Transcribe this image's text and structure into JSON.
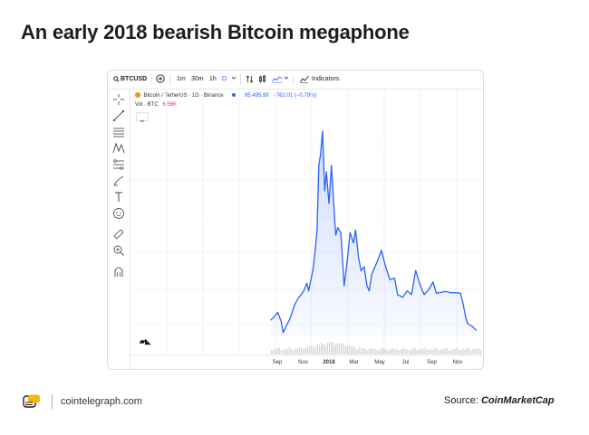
{
  "headline": "An early 2018 bearish Bitcoin megaphone",
  "toolbar": {
    "symbol": "BTCUSD",
    "intervals": [
      "1m",
      "30m",
      "1h",
      "D"
    ],
    "indicators_label": "Indicators"
  },
  "legend": {
    "pair_title": "Bitcoin / TetherUS · 1D · Binance",
    "price": "95,495.99",
    "change": "−762.01 (−0.79%)",
    "vol_label": "Vol · BTC",
    "vol_value": "6.56K"
  },
  "colors": {
    "line": "#2962ff",
    "price_up": "#2962ff",
    "change_down": "#f23645",
    "volume": "#d1d4dc"
  },
  "footer": {
    "site": "cointelegraph.com",
    "source_prefix": "Source: ",
    "source_name": "CoinMarketCap"
  },
  "chart_data": {
    "type": "area",
    "title": "",
    "xlabel": "",
    "ylabel": "",
    "x_ticks": [
      "Sep",
      "Nov",
      "2018",
      "Mar",
      "May",
      "Jul",
      "Sep",
      "Nov"
    ],
    "x": [
      "2017-08-17",
      "2017-08-25",
      "2017-09-02",
      "2017-09-10",
      "2017-09-15",
      "2017-09-22",
      "2017-10-01",
      "2017-10-12",
      "2017-10-20",
      "2017-11-01",
      "2017-11-10",
      "2017-11-14",
      "2017-11-25",
      "2017-11-30",
      "2017-12-04",
      "2017-12-08",
      "2017-12-12",
      "2017-12-17",
      "2017-12-22",
      "2017-12-26",
      "2018-01-01",
      "2018-01-07",
      "2018-01-10",
      "2018-01-17",
      "2018-01-22",
      "2018-01-29",
      "2018-02-06",
      "2018-02-12",
      "2018-02-20",
      "2018-02-28",
      "2018-03-05",
      "2018-03-12",
      "2018-03-18",
      "2018-03-25",
      "2018-04-01",
      "2018-04-06",
      "2018-04-12",
      "2018-04-25",
      "2018-05-05",
      "2018-05-15",
      "2018-05-25",
      "2018-06-05",
      "2018-06-12",
      "2018-06-24",
      "2018-07-05",
      "2018-07-15",
      "2018-07-25",
      "2018-08-05",
      "2018-08-14",
      "2018-08-25",
      "2018-09-04",
      "2018-09-12",
      "2018-09-25",
      "2018-10-05",
      "2018-10-15",
      "2018-11-01",
      "2018-11-08",
      "2018-11-14",
      "2018-11-20",
      "2018-11-25",
      "2018-12-05",
      "2018-12-15"
    ],
    "series": [
      {
        "values": [
          4300,
          4550,
          4900,
          4200,
          3300,
          3800,
          4400,
          5500,
          6000,
          6500,
          7200,
          6600,
          8400,
          9900,
          11500,
          16500,
          17300,
          19200,
          14500,
          16000,
          13500,
          16500,
          14700,
          11000,
          11600,
          11200,
          7000,
          8600,
          11200,
          10400,
          11400,
          9200,
          8200,
          8500,
          7000,
          6600,
          7900,
          8900,
          9800,
          8500,
          7500,
          7600,
          6300,
          6100,
          6600,
          6300,
          8200,
          7000,
          6300,
          6700,
          7300,
          6400,
          6500,
          6550,
          6450,
          6450,
          6400,
          5600,
          4500,
          4000,
          3800,
          3500
        ]
      }
    ],
    "ylim": [
      3000,
      20000
    ],
    "xlim": [
      "2017-08-17",
      "2018-12-31"
    ]
  }
}
